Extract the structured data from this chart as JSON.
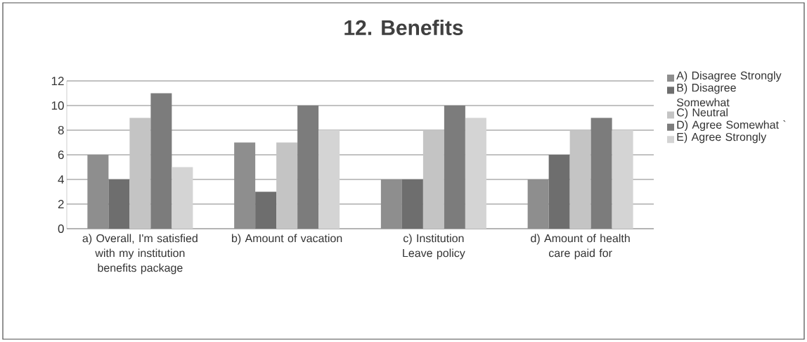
{
  "chart_data": {
    "type": "bar",
    "title": "12. Benefits",
    "categories": [
      "a) Overall, I'm satisfied with my institution benefits package",
      "b) Amount of vacation",
      "c) Institution Leave policy",
      "d) Amount of health care paid for"
    ],
    "series": [
      {
        "name": "A) Disagree Strongly",
        "color": "#8e8e8e",
        "values": [
          6,
          7,
          4,
          4
        ]
      },
      {
        "name": "B) Disagree Somewhat",
        "color": "#6e6e6e",
        "values": [
          4,
          3,
          4,
          6
        ]
      },
      {
        "name": "C) Neutral",
        "color": "#c4c4c4",
        "values": [
          9,
          7,
          8,
          8
        ]
      },
      {
        "name": "D) Agree Somewhat `",
        "color": "#7c7c7c",
        "values": [
          11,
          10,
          10,
          9
        ]
      },
      {
        "name": "E) Agree Strongly",
        "color": "#d4d4d4",
        "values": [
          5,
          8,
          9,
          8
        ]
      }
    ],
    "ylim": [
      0,
      12
    ],
    "yticks": [
      0,
      2,
      4,
      6,
      8,
      10,
      12
    ],
    "grid": "y",
    "legend": "right"
  }
}
